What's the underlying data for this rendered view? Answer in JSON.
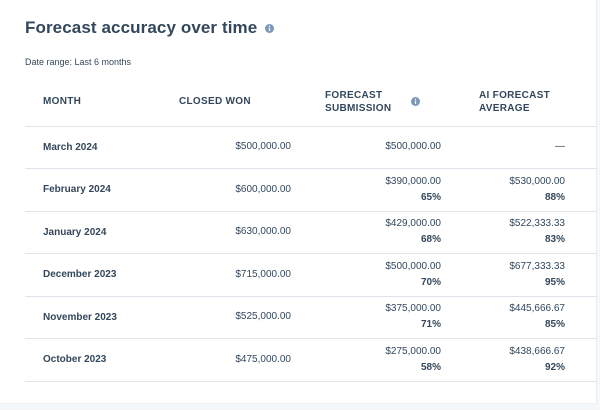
{
  "header": {
    "title": "Forecast accuracy over time",
    "date_range": "Date range: Last 6 months"
  },
  "table": {
    "columns": [
      "MONTH",
      "CLOSED WON",
      "FORECAST SUBMISSION",
      "AI FORECAST AVERAGE"
    ],
    "rows": [
      {
        "month": "March 2024",
        "closed_won": "$500,000.00",
        "forecast_value": "$500,000.00",
        "forecast_pct": "",
        "ai_value": "—",
        "ai_pct": ""
      },
      {
        "month": "February 2024",
        "closed_won": "$600,000.00",
        "forecast_value": "$390,000.00",
        "forecast_pct": "65%",
        "ai_value": "$530,000.00",
        "ai_pct": "88%"
      },
      {
        "month": "January 2024",
        "closed_won": "$630,000.00",
        "forecast_value": "$429,000.00",
        "forecast_pct": "68%",
        "ai_value": "$522,333.33",
        "ai_pct": "83%"
      },
      {
        "month": "December 2023",
        "closed_won": "$715,000.00",
        "forecast_value": "$500,000.00",
        "forecast_pct": "70%",
        "ai_value": "$677,333.33",
        "ai_pct": "95%"
      },
      {
        "month": "November 2023",
        "closed_won": "$525,000.00",
        "forecast_value": "$375,000.00",
        "forecast_pct": "71%",
        "ai_value": "$445,666.67",
        "ai_pct": "85%"
      },
      {
        "month": "October 2023",
        "closed_won": "$475,000.00",
        "forecast_value": "$275,000.00",
        "forecast_pct": "58%",
        "ai_value": "$438,666.67",
        "ai_pct": "92%"
      }
    ]
  },
  "icons": {
    "title_info": "info-icon",
    "submission_info": "info-icon"
  },
  "colors": {
    "text": "#33475b",
    "info_icon": "#7c98b6",
    "divider": "#dfe3eb"
  }
}
